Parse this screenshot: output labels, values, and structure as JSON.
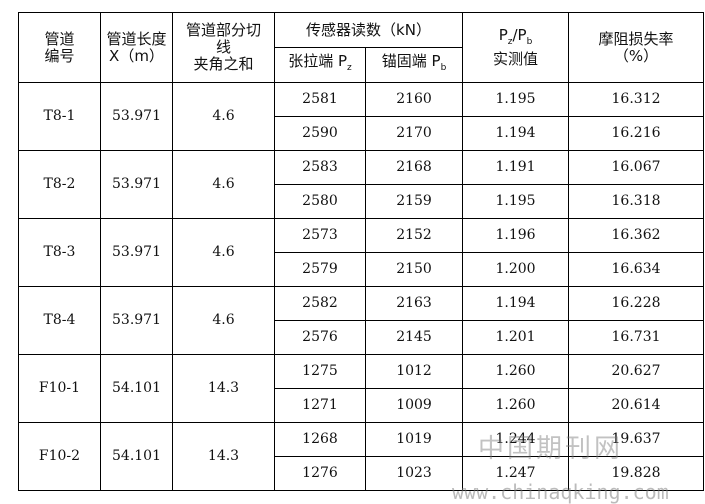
{
  "header": {
    "id": [
      "管道",
      "编号"
    ],
    "length": [
      "管道长度",
      "X（m）"
    ],
    "angle": [
      "管道部分切",
      "线",
      "夹角之和"
    ],
    "sensor": "传感器读数（kN）",
    "tension": {
      "text": "张拉端 P",
      "sub": "z"
    },
    "anchor": {
      "text": "锚固端 P",
      "sub": "b"
    },
    "ratio": {
      "p1": "P",
      "s1": "z",
      "slash": "/",
      "p2": "P",
      "s2": "b",
      "line2": "实测值"
    },
    "loss": [
      "摩阻损失率",
      "（%）"
    ]
  },
  "groups": [
    {
      "id": "T8-1",
      "length": "53.971",
      "angle": "4.6",
      "rows": [
        [
          "2581",
          "2160",
          "1.195",
          "16.312"
        ],
        [
          "2590",
          "2170",
          "1.194",
          "16.216"
        ]
      ]
    },
    {
      "id": "T8-2",
      "length": "53.971",
      "angle": "4.6",
      "rows": [
        [
          "2583",
          "2168",
          "1.191",
          "16.067"
        ],
        [
          "2580",
          "2159",
          "1.195",
          "16.318"
        ]
      ]
    },
    {
      "id": "T8-3",
      "length": "53.971",
      "angle": "4.6",
      "rows": [
        [
          "2573",
          "2152",
          "1.196",
          "16.362"
        ],
        [
          "2579",
          "2150",
          "1.200",
          "16.634"
        ]
      ]
    },
    {
      "id": "T8-4",
      "length": "53.971",
      "angle": "4.6",
      "rows": [
        [
          "2582",
          "2163",
          "1.194",
          "16.228"
        ],
        [
          "2576",
          "2145",
          "1.201",
          "16.731"
        ]
      ]
    },
    {
      "id": "F10-1",
      "length": "54.101",
      "angle": "14.3",
      "rows": [
        [
          "1275",
          "1012",
          "1.260",
          "20.627"
        ],
        [
          "1271",
          "1009",
          "1.260",
          "20.614"
        ]
      ]
    },
    {
      "id": "F10-2",
      "length": "54.101",
      "angle": "14.3",
      "rows": [
        [
          "1268",
          "1019",
          "1.244",
          "19.637"
        ],
        [
          "1276",
          "1023",
          "1.247",
          "19.828"
        ]
      ]
    }
  ],
  "watermark": {
    "name": "中国期刊网",
    "url": "www.chinaqking.com"
  }
}
